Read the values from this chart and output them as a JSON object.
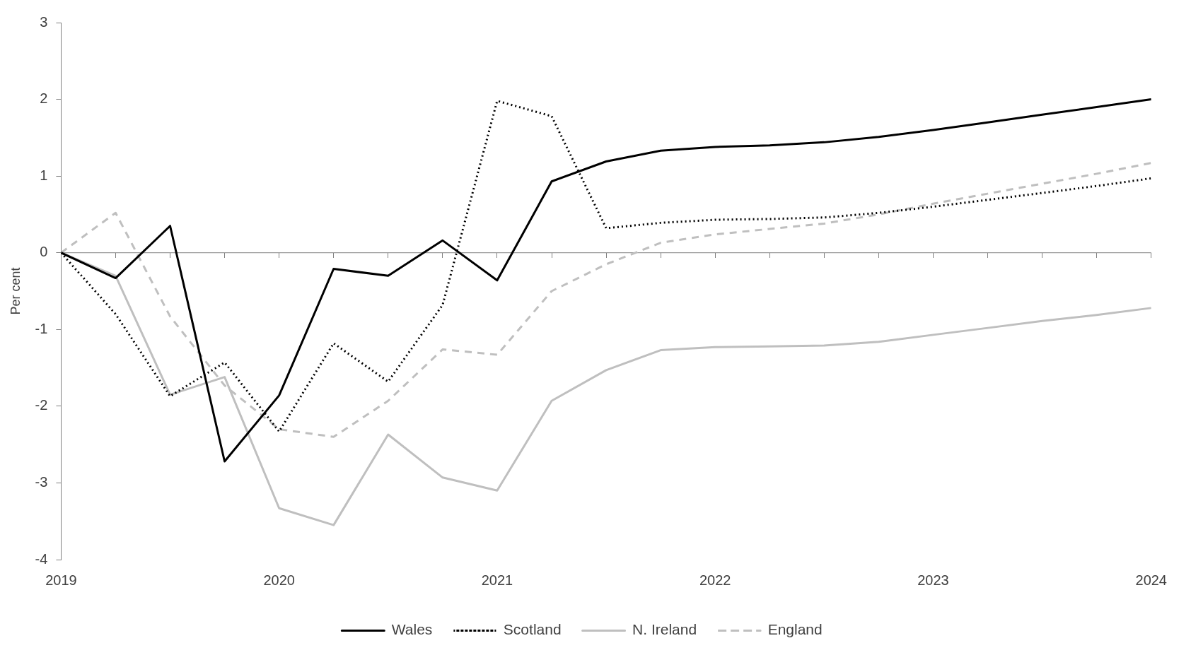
{
  "chart_data": {
    "type": "line",
    "ylabel": "Per cent",
    "x": [
      2019,
      2019.25,
      2019.5,
      2019.75,
      2020,
      2020.25,
      2020.5,
      2020.75,
      2021,
      2021.25,
      2021.5,
      2021.75,
      2022,
      2022.25,
      2022.5,
      2022.75,
      2023,
      2023.25,
      2023.5,
      2023.75,
      2024
    ],
    "series": [
      {
        "name": "Wales",
        "color": "#000000",
        "line_style": "solid",
        "values": [
          0,
          -0.33,
          0.35,
          -2.72,
          -1.86,
          -0.21,
          -0.3,
          0.16,
          -0.36,
          0.93,
          1.19,
          1.33,
          1.38,
          1.4,
          1.44,
          1.51,
          1.6,
          1.7,
          1.8,
          1.9,
          2.0
        ]
      },
      {
        "name": "Scotland",
        "color": "#000000",
        "line_style": "dotted",
        "values": [
          0,
          -0.8,
          -1.87,
          -1.43,
          -2.33,
          -1.18,
          -1.68,
          -0.68,
          1.98,
          1.78,
          0.32,
          0.39,
          0.43,
          0.44,
          0.46,
          0.52,
          0.6,
          0.69,
          0.78,
          0.87,
          0.97
        ]
      },
      {
        "name": "N. Ireland",
        "color": "#bfbfbf",
        "line_style": "solid",
        "values": [
          0,
          -0.3,
          -1.85,
          -1.62,
          -3.33,
          -3.55,
          -2.37,
          -2.93,
          -3.1,
          -1.93,
          -1.53,
          -1.27,
          -1.23,
          -1.22,
          -1.21,
          -1.16,
          -1.07,
          -0.98,
          -0.89,
          -0.81,
          -0.72
        ]
      },
      {
        "name": "England",
        "color": "#bfbfbf",
        "line_style": "dashed",
        "values": [
          0,
          0.52,
          -0.83,
          -1.73,
          -2.3,
          -2.4,
          -1.93,
          -1.26,
          -1.33,
          -0.5,
          -0.15,
          0.13,
          0.24,
          0.31,
          0.38,
          0.5,
          0.64,
          0.77,
          0.9,
          1.03,
          1.17
        ]
      }
    ],
    "xlim": [
      2019,
      2024
    ],
    "xticks": [
      2019,
      2020,
      2021,
      2022,
      2023,
      2024
    ],
    "ylim": [
      -4,
      3
    ],
    "yticks": [
      -4,
      -3,
      -2,
      -1,
      0,
      1,
      2,
      3
    ],
    "ref_lines": [
      {
        "axis": "y",
        "value": 0,
        "color": "#808080"
      }
    ],
    "grid": false,
    "legend": "bottom",
    "marker": "none"
  }
}
